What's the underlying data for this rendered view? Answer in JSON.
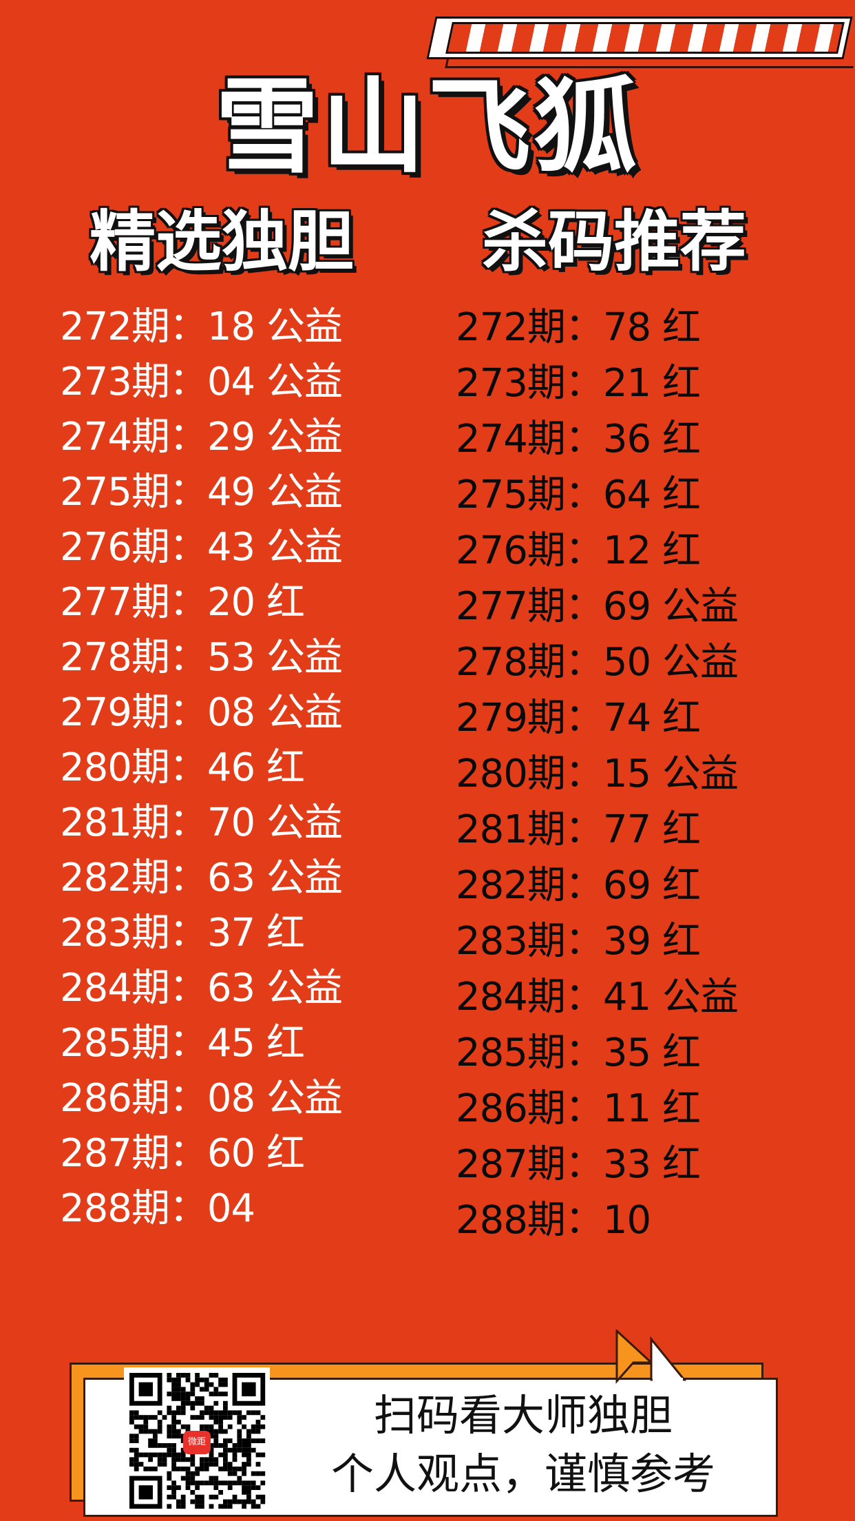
{
  "colors": {
    "background": "#e33c19",
    "panel_back": "#f7941d",
    "panel_front": "#ffffff",
    "left_text": "#ffffff",
    "right_text": "#0a0a0a"
  },
  "title": "雪山飞狐",
  "left_heading": "精选独胆",
  "right_heading": "杀码推荐",
  "left_list": [
    "272期：18 公益",
    "273期：04 公益",
    "274期：29 公益",
    "275期：49 公益",
    "276期：43 公益",
    "277期：20 红",
    "278期：53 公益",
    "279期：08 公益",
    "280期：46 红",
    "281期：70 公益",
    "282期：63 公益",
    "283期：37 红",
    "284期：63 公益",
    "285期：45 红",
    "286期：08 公益",
    "287期：60 红",
    "288期：04"
  ],
  "right_list": [
    "272期：78 红",
    "273期：21 红",
    "274期：36 红",
    "275期：64 红",
    "276期：12 红",
    "277期：69 公益",
    "278期：50 公益",
    "279期：74 红",
    "280期：15 公益",
    "281期：77 红",
    "282期：69 红",
    "283期：39 红",
    "284期：41 公益",
    "285期：35 红",
    "286期：11 红",
    "287期：33 红",
    "288期：10"
  ],
  "footer": {
    "line1": "扫码看大师独胆",
    "line2": "个人观点，谨慎参考",
    "qr_logo_text": "微距",
    "qr_icon": "qr-code"
  }
}
